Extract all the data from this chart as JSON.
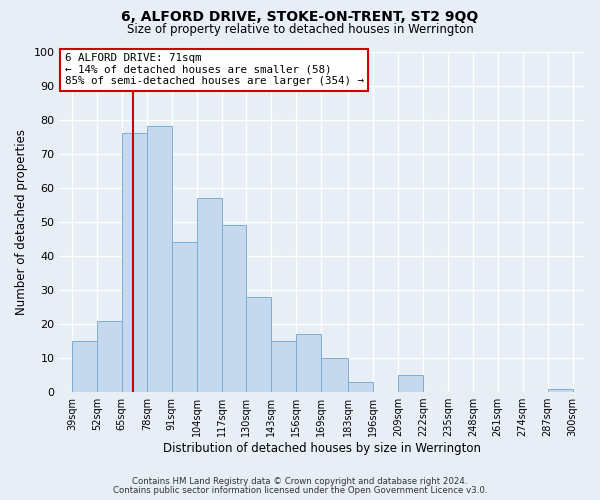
{
  "title": "6, ALFORD DRIVE, STOKE-ON-TRENT, ST2 9QQ",
  "subtitle": "Size of property relative to detached houses in Werrington",
  "xlabel": "Distribution of detached houses by size in Werrington",
  "ylabel": "Number of detached properties",
  "bar_color": "#c5d8ed",
  "bar_edge_color": "#7aafd4",
  "background_color": "#e8eef5",
  "grid_color": "#ffffff",
  "vline_x": 71,
  "vline_color": "#cc0000",
  "annotation_title": "6 ALFORD DRIVE: 71sqm",
  "annotation_line1": "← 14% of detached houses are smaller (58)",
  "annotation_line2": "85% of semi-detached houses are larger (354) →",
  "bin_edges": [
    39,
    52,
    65,
    78,
    91,
    104,
    117,
    130,
    143,
    156,
    169,
    183,
    196,
    209,
    222,
    235,
    248,
    261,
    274,
    287,
    300
  ],
  "bar_heights": [
    15,
    21,
    76,
    78,
    44,
    57,
    49,
    28,
    15,
    17,
    10,
    3,
    0,
    5,
    0,
    0,
    0,
    0,
    0,
    1
  ],
  "ylim": [
    0,
    100
  ],
  "yticks": [
    0,
    10,
    20,
    30,
    40,
    50,
    60,
    70,
    80,
    90,
    100
  ],
  "footnote1": "Contains HM Land Registry data © Crown copyright and database right 2024.",
  "footnote2": "Contains public sector information licensed under the Open Government Licence v3.0."
}
